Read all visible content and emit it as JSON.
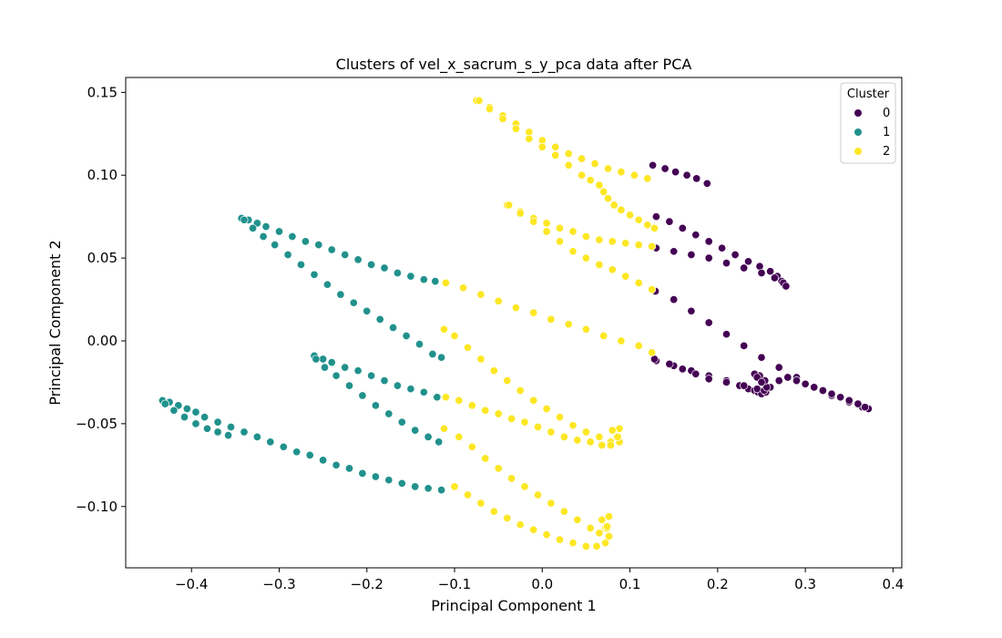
{
  "chart_data": {
    "type": "scatter",
    "title": "Clusters of vel_x_sacrum_s_y_pca data after PCA",
    "xlabel": "Principal Component 1",
    "ylabel": "Principal Component 2",
    "xlim": [
      -0.475,
      0.41
    ],
    "ylim": [
      -0.137,
      0.159
    ],
    "xticks": [
      -0.4,
      -0.3,
      -0.2,
      -0.1,
      0.0,
      0.1,
      0.2,
      0.3,
      0.4
    ],
    "xtick_labels": [
      "−0.4",
      "−0.3",
      "−0.2",
      "−0.1",
      "0.0",
      "0.1",
      "0.2",
      "0.3",
      "0.4"
    ],
    "yticks": [
      -0.1,
      -0.05,
      0.0,
      0.05,
      0.1,
      0.15
    ],
    "ytick_labels": [
      "−0.10",
      "−0.05",
      "0.00",
      "0.05",
      "0.10",
      "0.15"
    ],
    "grid": false,
    "legend": {
      "title": "Cluster",
      "placement": "top-right"
    },
    "series": [
      {
        "name": "0",
        "color": "#440154",
        "x": [
          0.126,
          0.14,
          0.152,
          0.165,
          0.176,
          0.188,
          0.13,
          0.145,
          0.16,
          0.175,
          0.19,
          0.205,
          0.22,
          0.235,
          0.248,
          0.26,
          0.268,
          0.273,
          0.277,
          0.13,
          0.15,
          0.17,
          0.19,
          0.21,
          0.23,
          0.25,
          0.265,
          0.275,
          0.278,
          0.129,
          0.15,
          0.17,
          0.19,
          0.21,
          0.23,
          0.25,
          0.27,
          0.29,
          0.31,
          0.33,
          0.35,
          0.365,
          0.372,
          0.13,
          0.15,
          0.17,
          0.19,
          0.21,
          0.225,
          0.235,
          0.242,
          0.246,
          0.25,
          0.255,
          0.26,
          0.27,
          0.28,
          0.29,
          0.3,
          0.31,
          0.32,
          0.33,
          0.34,
          0.35,
          0.36,
          0.368,
          0.128,
          0.145,
          0.16,
          0.175,
          0.19,
          0.21,
          0.23,
          0.245,
          0.253,
          0.256,
          0.254,
          0.248,
          0.242,
          0.245,
          0.25
        ],
        "y": [
          0.106,
          0.104,
          0.102,
          0.1,
          0.098,
          0.095,
          0.075,
          0.072,
          0.068,
          0.064,
          0.06,
          0.056,
          0.052,
          0.048,
          0.045,
          0.042,
          0.039,
          0.036,
          0.033,
          0.056,
          0.054,
          0.052,
          0.05,
          0.047,
          0.044,
          0.041,
          0.038,
          0.035,
          0.033,
          0.03,
          0.025,
          0.018,
          0.011,
          0.004,
          -0.003,
          -0.01,
          -0.016,
          -0.022,
          -0.028,
          -0.033,
          -0.037,
          -0.04,
          -0.041,
          -0.012,
          -0.015,
          -0.018,
          -0.021,
          -0.024,
          -0.027,
          -0.029,
          -0.03,
          -0.031,
          -0.032,
          -0.031,
          -0.028,
          -0.024,
          -0.022,
          -0.024,
          -0.026,
          -0.028,
          -0.03,
          -0.032,
          -0.034,
          -0.036,
          -0.038,
          -0.04,
          -0.011,
          -0.014,
          -0.017,
          -0.02,
          -0.023,
          -0.025,
          -0.027,
          -0.029,
          -0.03,
          -0.028,
          -0.024,
          -0.021,
          -0.02,
          -0.022,
          -0.025
        ]
      },
      {
        "name": "1",
        "color": "#21918c",
        "x": [
          -0.343,
          -0.335,
          -0.325,
          -0.315,
          -0.3,
          -0.285,
          -0.27,
          -0.255,
          -0.24,
          -0.225,
          -0.21,
          -0.195,
          -0.18,
          -0.165,
          -0.15,
          -0.135,
          -0.122,
          -0.34,
          -0.33,
          -0.318,
          -0.305,
          -0.29,
          -0.275,
          -0.26,
          -0.245,
          -0.23,
          -0.215,
          -0.2,
          -0.185,
          -0.17,
          -0.155,
          -0.14,
          -0.125,
          -0.115,
          -0.26,
          -0.25,
          -0.24,
          -0.225,
          -0.21,
          -0.195,
          -0.18,
          -0.165,
          -0.15,
          -0.135,
          -0.12,
          -0.258,
          -0.248,
          -0.235,
          -0.22,
          -0.205,
          -0.19,
          -0.175,
          -0.16,
          -0.145,
          -0.13,
          -0.118,
          -0.433,
          -0.425,
          -0.415,
          -0.405,
          -0.395,
          -0.385,
          -0.37,
          -0.355,
          -0.34,
          -0.325,
          -0.31,
          -0.295,
          -0.28,
          -0.265,
          -0.25,
          -0.235,
          -0.22,
          -0.205,
          -0.19,
          -0.175,
          -0.16,
          -0.145,
          -0.13,
          -0.115,
          -0.43,
          -0.42,
          -0.408,
          -0.395,
          -0.382,
          -0.37,
          -0.358
        ],
        "y": [
          0.074,
          0.073,
          0.071,
          0.069,
          0.066,
          0.063,
          0.06,
          0.058,
          0.055,
          0.052,
          0.049,
          0.046,
          0.044,
          0.041,
          0.039,
          0.037,
          0.036,
          0.073,
          0.068,
          0.063,
          0.058,
          0.052,
          0.046,
          0.04,
          0.034,
          0.028,
          0.023,
          0.018,
          0.013,
          0.008,
          0.003,
          -0.002,
          -0.008,
          -0.01,
          -0.009,
          -0.011,
          -0.013,
          -0.016,
          -0.018,
          -0.021,
          -0.024,
          -0.027,
          -0.029,
          -0.031,
          -0.034,
          -0.011,
          -0.016,
          -0.021,
          -0.027,
          -0.033,
          -0.039,
          -0.044,
          -0.049,
          -0.054,
          -0.058,
          -0.061,
          -0.036,
          -0.037,
          -0.039,
          -0.041,
          -0.043,
          -0.046,
          -0.049,
          -0.052,
          -0.055,
          -0.058,
          -0.061,
          -0.064,
          -0.067,
          -0.069,
          -0.072,
          -0.075,
          -0.077,
          -0.08,
          -0.082,
          -0.084,
          -0.086,
          -0.088,
          -0.089,
          -0.09,
          -0.038,
          -0.042,
          -0.046,
          -0.05,
          -0.053,
          -0.055,
          -0.057
        ]
      },
      {
        "name": "2",
        "color": "#fde725",
        "x": [
          -0.075,
          -0.06,
          -0.045,
          -0.03,
          -0.015,
          0.0,
          0.015,
          0.03,
          0.045,
          0.06,
          0.075,
          0.09,
          0.105,
          0.12,
          -0.072,
          -0.06,
          -0.045,
          -0.03,
          -0.015,
          0.0,
          0.015,
          0.03,
          0.045,
          0.055,
          0.065,
          0.07,
          0.075,
          0.082,
          0.09,
          0.1,
          0.11,
          0.12,
          0.128,
          -0.04,
          -0.025,
          -0.01,
          0.005,
          0.02,
          0.035,
          0.05,
          0.065,
          0.08,
          0.095,
          0.11,
          0.125,
          -0.038,
          -0.025,
          -0.01,
          0.005,
          0.02,
          0.035,
          0.05,
          0.065,
          0.08,
          0.095,
          0.11,
          0.125,
          -0.11,
          -0.09,
          -0.07,
          -0.05,
          -0.03,
          -0.01,
          0.01,
          0.03,
          0.05,
          0.07,
          0.09,
          0.11,
          0.125,
          -0.112,
          -0.1,
          -0.085,
          -0.07,
          -0.055,
          -0.04,
          -0.025,
          -0.01,
          0.005,
          0.02,
          0.035,
          0.05,
          0.065,
          0.078,
          0.085,
          0.088,
          -0.11,
          -0.095,
          -0.08,
          -0.065,
          -0.05,
          -0.035,
          -0.02,
          -0.005,
          0.01,
          0.025,
          0.04,
          0.055,
          0.068,
          0.078,
          0.088,
          0.086,
          0.08,
          -0.112,
          -0.095,
          -0.08,
          -0.065,
          -0.05,
          -0.035,
          -0.02,
          -0.005,
          0.01,
          0.025,
          0.04,
          0.055,
          0.065,
          0.072,
          0.076,
          -0.1,
          -0.085,
          -0.07,
          -0.055,
          -0.04,
          -0.025,
          -0.01,
          0.005,
          0.02,
          0.035,
          0.05,
          0.062,
          0.072,
          0.076,
          0.074,
          0.068,
          0.074
        ],
        "y": [
          0.145,
          0.141,
          0.136,
          0.131,
          0.126,
          0.121,
          0.117,
          0.113,
          0.11,
          0.107,
          0.104,
          0.102,
          0.1,
          0.098,
          0.145,
          0.14,
          0.134,
          0.128,
          0.122,
          0.117,
          0.112,
          0.106,
          0.1,
          0.097,
          0.094,
          0.09,
          0.086,
          0.082,
          0.079,
          0.076,
          0.073,
          0.07,
          0.068,
          0.082,
          0.078,
          0.074,
          0.071,
          0.068,
          0.066,
          0.063,
          0.061,
          0.06,
          0.059,
          0.058,
          0.057,
          0.082,
          0.077,
          0.072,
          0.066,
          0.06,
          0.054,
          0.05,
          0.046,
          0.043,
          0.039,
          0.035,
          0.031,
          0.035,
          0.032,
          0.028,
          0.024,
          0.02,
          0.017,
          0.013,
          0.01,
          0.007,
          0.003,
          0.0,
          -0.003,
          -0.007,
          0.007,
          0.003,
          -0.004,
          -0.011,
          -0.018,
          -0.024,
          -0.03,
          -0.036,
          -0.041,
          -0.046,
          -0.051,
          -0.055,
          -0.058,
          -0.061,
          -0.058,
          -0.053,
          -0.034,
          -0.036,
          -0.039,
          -0.042,
          -0.044,
          -0.047,
          -0.049,
          -0.052,
          -0.055,
          -0.058,
          -0.06,
          -0.061,
          -0.063,
          -0.063,
          -0.061,
          -0.058,
          -0.054,
          -0.053,
          -0.058,
          -0.064,
          -0.071,
          -0.077,
          -0.083,
          -0.088,
          -0.093,
          -0.098,
          -0.103,
          -0.108,
          -0.113,
          -0.116,
          -0.113,
          -0.106,
          -0.088,
          -0.093,
          -0.098,
          -0.103,
          -0.107,
          -0.111,
          -0.114,
          -0.117,
          -0.12,
          -0.122,
          -0.124,
          -0.124,
          -0.122,
          -0.118,
          -0.113,
          -0.108,
          -0.112
        ]
      }
    ]
  }
}
